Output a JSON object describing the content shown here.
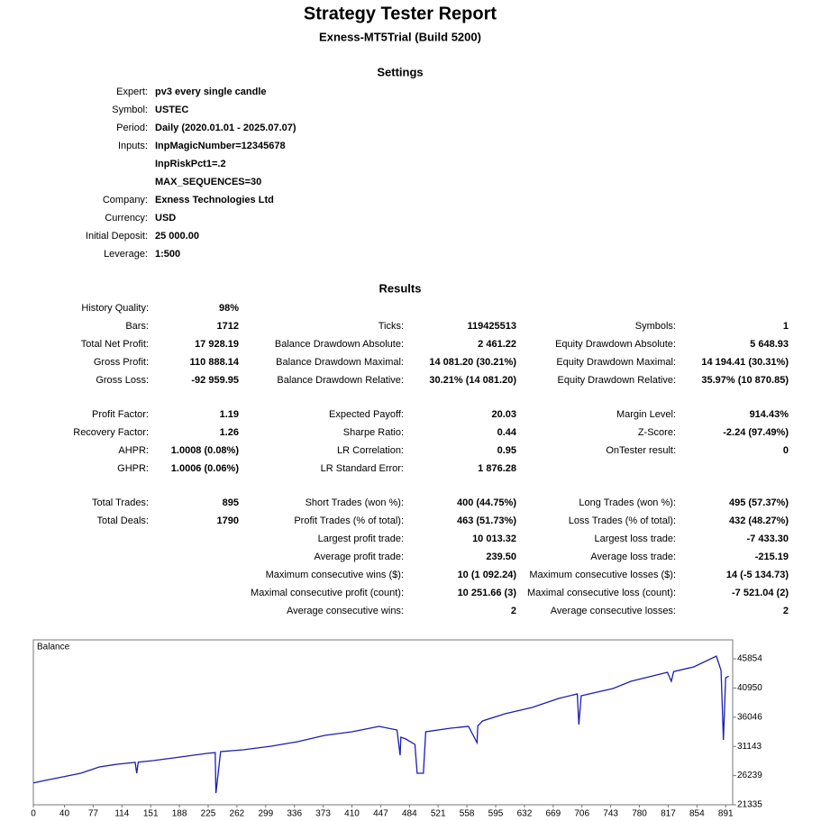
{
  "header": {
    "title": "Strategy Tester Report",
    "subtitle": "Exness-MT5Trial (Build 5200)"
  },
  "settings": {
    "title": "Settings",
    "rows": [
      {
        "label": "Expert:",
        "values": [
          "pv3 every single candle"
        ]
      },
      {
        "label": "Symbol:",
        "values": [
          "USTEC"
        ]
      },
      {
        "label": "Period:",
        "values": [
          "Daily (2020.01.01 - 2025.07.07)"
        ]
      },
      {
        "label": "Inputs:",
        "values": [
          "InpMagicNumber=12345678",
          "InpRiskPct1=.2",
          "MAX_SEQUENCES=30"
        ]
      },
      {
        "label": "Company:",
        "values": [
          "Exness Technologies Ltd"
        ]
      },
      {
        "label": "Currency:",
        "values": [
          "USD"
        ]
      },
      {
        "label": "Initial Deposit:",
        "values": [
          "25 000.00"
        ]
      },
      {
        "label": "Leverage:",
        "values": [
          "1:500"
        ]
      }
    ]
  },
  "results": {
    "title": "Results",
    "groups": [
      [
        [
          {
            "label": "History Quality:",
            "value": "98%"
          },
          null,
          null
        ],
        [
          {
            "label": "Bars:",
            "value": "1712"
          },
          {
            "label": "Ticks:",
            "value": "119425513"
          },
          {
            "label": "Symbols:",
            "value": "1"
          }
        ],
        [
          {
            "label": "Total Net Profit:",
            "value": "17 928.19"
          },
          {
            "label": "Balance Drawdown Absolute:",
            "value": "2 461.22"
          },
          {
            "label": "Equity Drawdown Absolute:",
            "value": "5 648.93"
          }
        ],
        [
          {
            "label": "Gross Profit:",
            "value": "110 888.14"
          },
          {
            "label": "Balance Drawdown Maximal:",
            "value": "14 081.20 (30.21%)"
          },
          {
            "label": "Equity Drawdown Maximal:",
            "value": "14 194.41 (30.31%)"
          }
        ],
        [
          {
            "label": "Gross Loss:",
            "value": "-92 959.95"
          },
          {
            "label": "Balance Drawdown Relative:",
            "value": "30.21% (14 081.20)"
          },
          {
            "label": "Equity Drawdown Relative:",
            "value": "35.97% (10 870.85)"
          }
        ]
      ],
      [
        [
          {
            "label": "Profit Factor:",
            "value": "1.19"
          },
          {
            "label": "Expected Payoff:",
            "value": "20.03"
          },
          {
            "label": "Margin Level:",
            "value": "914.43%"
          }
        ],
        [
          {
            "label": "Recovery Factor:",
            "value": "1.26"
          },
          {
            "label": "Sharpe Ratio:",
            "value": "0.44"
          },
          {
            "label": "Z-Score:",
            "value": "-2.24 (97.49%)"
          }
        ],
        [
          {
            "label": "AHPR:",
            "value": "1.0008 (0.08%)"
          },
          {
            "label": "LR Correlation:",
            "value": "0.95"
          },
          {
            "label": "OnTester result:",
            "value": "0"
          }
        ],
        [
          {
            "label": "GHPR:",
            "value": "1.0006 (0.06%)"
          },
          {
            "label": "LR Standard Error:",
            "value": "1 876.28"
          },
          null
        ]
      ],
      [
        [
          {
            "label": "Total Trades:",
            "value": "895"
          },
          {
            "label": "Short Trades (won %):",
            "value": "400 (44.75%)"
          },
          {
            "label": "Long Trades (won %):",
            "value": "495 (57.37%)"
          }
        ],
        [
          {
            "label": "Total Deals:",
            "value": "1790"
          },
          {
            "label": "Profit Trades (% of total):",
            "value": "463 (51.73%)"
          },
          {
            "label": "Loss Trades (% of total):",
            "value": "432 (48.27%)"
          }
        ],
        [
          null,
          {
            "label": "Largest profit trade:",
            "value": "10 013.32"
          },
          {
            "label": "Largest loss trade:",
            "value": "-7 433.30"
          }
        ],
        [
          null,
          {
            "label": "Average profit trade:",
            "value": "239.50"
          },
          {
            "label": "Average loss trade:",
            "value": "-215.19"
          }
        ],
        [
          null,
          {
            "label": "Maximum consecutive wins ($):",
            "value": "10 (1 092.24)"
          },
          {
            "label": "Maximum consecutive losses ($):",
            "value": "14 (-5 134.73)"
          }
        ],
        [
          null,
          {
            "label": "Maximal consecutive profit (count):",
            "value": "10 251.66 (3)"
          },
          {
            "label": "Maximal consecutive loss (count):",
            "value": "-7 521.04 (2)"
          }
        ],
        [
          null,
          {
            "label": "Average consecutive wins:",
            "value": "2"
          },
          {
            "label": "Average consecutive losses:",
            "value": "2"
          }
        ]
      ]
    ]
  },
  "chart_data": {
    "type": "line",
    "x": [
      0,
      15,
      38,
      61,
      85,
      108,
      131,
      133,
      135,
      154,
      189,
      223,
      234,
      235,
      241,
      270,
      306,
      340,
      375,
      410,
      445,
      468,
      472,
      473,
      479,
      491,
      494,
      502,
      505,
      537,
      560,
      571,
      572,
      578,
      607,
      642,
      676,
      700,
      702,
      705,
      746,
      769,
      816,
      821,
      824,
      850,
      879,
      885,
      888,
      891,
      895
    ],
    "series": [
      {
        "name": "Balance",
        "color": "#1c1cb4",
        "values": [
          25000,
          25421,
          26027,
          26632,
          27692,
          28146,
          28448,
          26632,
          28500,
          28751,
          29357,
          29962,
          30100,
          23303,
          30265,
          30567,
          31173,
          31929,
          32989,
          33594,
          34502,
          33897,
          29659,
          32686,
          32400,
          31475,
          26632,
          26632,
          33594,
          34200,
          34502,
          31778,
          34600,
          35411,
          36621,
          37681,
          39194,
          39951,
          34805,
          39648,
          40859,
          42070,
          43583,
          42070,
          43700,
          44492,
          46308,
          43886,
          32227,
          42675,
          42928
        ]
      }
    ],
    "xlim": [
      0,
      900
    ],
    "ylim": [
      21335,
      49033
    ],
    "xticks": [
      0,
      40,
      77,
      114,
      151,
      188,
      225,
      262,
      299,
      336,
      373,
      410,
      447,
      484,
      521,
      558,
      595,
      632,
      669,
      706,
      743,
      780,
      817,
      854,
      891
    ],
    "yticks": [
      21335,
      26239,
      31143,
      36046,
      40950,
      45854
    ]
  }
}
